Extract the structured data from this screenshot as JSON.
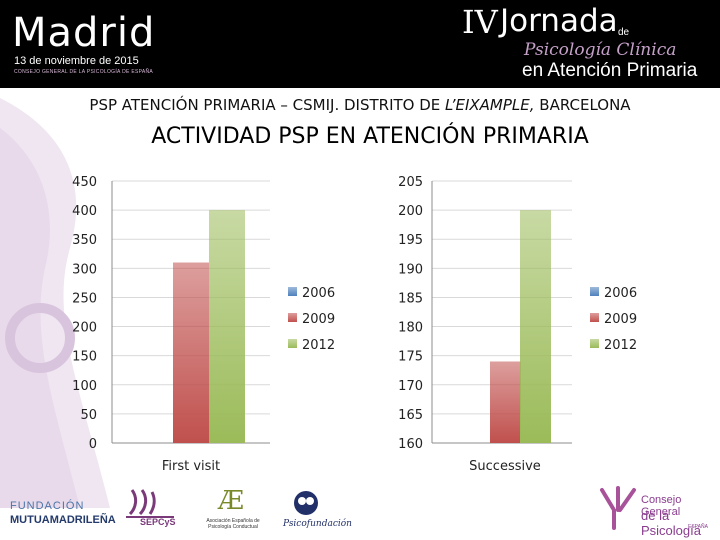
{
  "header": {
    "city": "Madrid",
    "date": "13 de noviembre de 2015",
    "org": "CONSEJO GENERAL DE LA PSICOLOGÍA DE ESPAÑA",
    "jornada_iv": "IV",
    "jornada": "Jornada",
    "jornada_de": "de",
    "jornada_line2": "Psicología Clínica",
    "jornada_line3": "en Atención Primaria"
  },
  "slide": {
    "subtitle_pre": "PSP ATENCIÓN PRIMARIA – CSMIJ. DISTRITO DE ",
    "subtitle_em": "L’EIXAMPLE,",
    "subtitle_post": " BARCELONA",
    "title": "ACTIVIDAD PSP EN ATENCIÓN PRIMARIA"
  },
  "colors": {
    "s2006": "#4f81bd",
    "s2009": "#c0504d",
    "s2012": "#9bbb59",
    "grid": "#d9d9d9",
    "axis": "#8c8c8c"
  },
  "chart_data": [
    {
      "type": "bar",
      "categories": [
        "First visit"
      ],
      "series": [
        {
          "name": "2006",
          "values": [
            0
          ]
        },
        {
          "name": "2009",
          "values": [
            310
          ]
        },
        {
          "name": "2012",
          "values": [
            400
          ]
        }
      ],
      "ylim": [
        0,
        450
      ],
      "yticks": [
        0,
        50,
        100,
        150,
        200,
        250,
        300,
        350,
        400,
        450
      ],
      "grid": true,
      "legend": "right"
    },
    {
      "type": "bar",
      "categories": [
        "Successive"
      ],
      "series": [
        {
          "name": "2006",
          "values": [
            160
          ]
        },
        {
          "name": "2009",
          "values": [
            174
          ]
        },
        {
          "name": "2012",
          "values": [
            200
          ]
        }
      ],
      "ylim": [
        160,
        205
      ],
      "yticks": [
        160,
        165,
        170,
        175,
        180,
        185,
        190,
        195,
        200,
        205
      ],
      "grid": true,
      "legend": "right"
    }
  ],
  "footer": {
    "fm_line1": "FUNDACIÓN",
    "fm_line2": "MUTUAMADRILEÑA",
    "sepcys": "SEPCyS",
    "ae_mark": "Æ",
    "ae_text": "Asociación Española de Psicología Conductual",
    "psf": "Psicofundación",
    "cg_line1": "Consejo General",
    "cg_line2": "de la Psicología",
    "cg_line3": "ESPAÑA"
  }
}
